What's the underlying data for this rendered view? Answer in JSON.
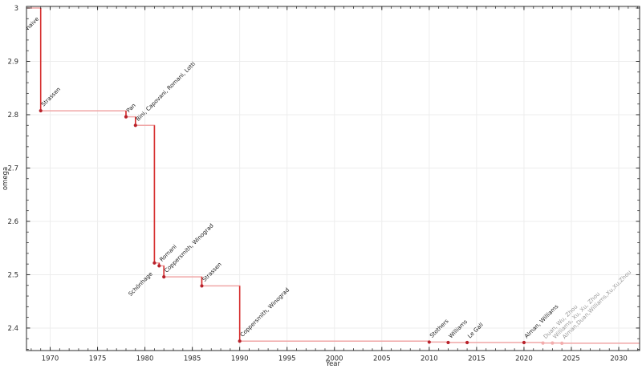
{
  "chart_data": {
    "type": "line",
    "subtype": "step-post",
    "title": "",
    "xlabel": "Year",
    "ylabel": "omega",
    "xlim": [
      1967.5,
      2032.2
    ],
    "ylim": [
      2.3578,
      3.003
    ],
    "grid": true,
    "legend": "none",
    "x_major_ticks": {
      "values": [
        1970,
        1975,
        1980,
        1985,
        1990,
        1995,
        2000,
        2005,
        2010,
        2015,
        2020,
        2025,
        2030
      ],
      "labels": [
        "1970",
        "1975",
        "1980",
        "1985",
        "1990",
        "1995",
        "2000",
        "2005",
        "2010",
        "2015",
        "2020",
        "2025",
        "2030"
      ]
    },
    "x_minor_step": 1,
    "y_major_ticks": {
      "values": [
        2.4,
        2.5,
        2.6,
        2.7,
        2.8,
        2.9,
        3.0
      ],
      "labels": [
        "2.4",
        "2.5",
        "2.6",
        "2.7",
        "2.8",
        "2.9",
        "3"
      ]
    },
    "y_minor_step": 0.02,
    "baseline": {
      "omega": 3.0,
      "label": "naive",
      "label_year": 1969,
      "placement": "below"
    },
    "points": [
      {
        "year": 1969,
        "omega": 2.8074,
        "label": "Strassen",
        "era": "published",
        "placement": "above"
      },
      {
        "year": 1978,
        "omega": 2.796,
        "label": "Pan",
        "era": "published",
        "placement": "above"
      },
      {
        "year": 1979,
        "omega": 2.78,
        "label": "Bini, Capovani, Romani, Lotti",
        "era": "published",
        "placement": "above"
      },
      {
        "year": 1981,
        "omega": 2.522,
        "label": "Schönhage",
        "era": "published",
        "placement": "below"
      },
      {
        "year": 1981.5,
        "omega": 2.5166,
        "label": "Romani",
        "era": "published",
        "placement": "above"
      },
      {
        "year": 1982,
        "omega": 2.496,
        "label": "Coppersmith, Winograd",
        "era": "published",
        "placement": "above"
      },
      {
        "year": 1986,
        "omega": 2.479,
        "label": "Strassen",
        "era": "published",
        "placement": "above"
      },
      {
        "year": 1990,
        "omega": 2.3755,
        "label": "Coppersmith, Winograd",
        "era": "published",
        "placement": "above"
      },
      {
        "year": 2010,
        "omega": 2.3737,
        "label": "Stothers",
        "era": "published",
        "placement": "above"
      },
      {
        "year": 2012,
        "omega": 2.3729,
        "label": "Williams",
        "era": "published",
        "placement": "above"
      },
      {
        "year": 2014,
        "omega": 2.3728639,
        "label": "Le Gall",
        "era": "published",
        "placement": "above"
      },
      {
        "year": 2020,
        "omega": 2.3728596,
        "label": "Alman, Williams",
        "era": "published",
        "placement": "above"
      },
      {
        "year": 2022,
        "omega": 2.37188,
        "label": "Duan, Wu, Zhou",
        "era": "preprint",
        "placement": "above"
      },
      {
        "year": 2023,
        "omega": 2.371866,
        "label": "Williams, Xu, Xu, Zhou",
        "era": "preprint",
        "placement": "above"
      },
      {
        "year": 2024,
        "omega": 2.371552,
        "label": "Alman,Duan,Williams,Xu,Xu,Zhou",
        "era": "preprint",
        "placement": "above"
      }
    ],
    "colors": {
      "background": "#ffffff",
      "line": "#f0a6a6",
      "drop": "#d62f2f",
      "marker": "#b8222b",
      "marker_preprint": "#f3acac",
      "label": "#1a1a1a",
      "label_preprint": "#9a9a9a",
      "axis": "#2b2b2b",
      "grid": "#ededed"
    }
  }
}
